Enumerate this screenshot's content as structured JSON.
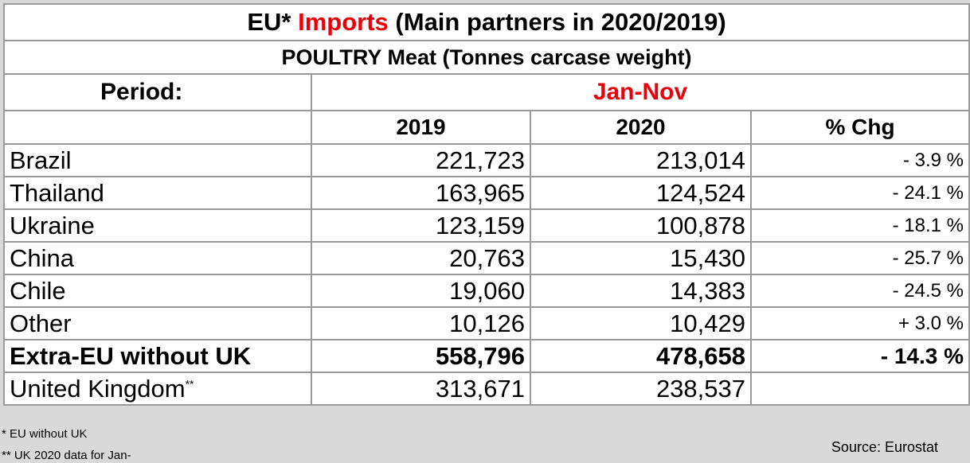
{
  "title": {
    "prefix": "EU*",
    "highlight": "Imports",
    "suffix": "(Main partners in 2020/2019)"
  },
  "subtitle": "POULTRY Meat (Tonnes carcase weight)",
  "period_label": "Period:",
  "period": "Jan-Nov",
  "columns": [
    "2019",
    "2020",
    "% Chg"
  ],
  "rows": [
    {
      "cells": [
        "Brazil",
        "221,723",
        "213,014",
        "- 3.9 %"
      ]
    },
    {
      "cells": [
        "Thailand",
        "163,965",
        "124,524",
        "- 24.1 %"
      ]
    },
    {
      "cells": [
        "Ukraine",
        "123,159",
        "100,878",
        "- 18.1 %"
      ]
    },
    {
      "cells": [
        "China",
        "20,763",
        "15,430",
        "- 25.7 %"
      ]
    },
    {
      "cells": [
        "Chile",
        "19,060",
        "14,383",
        "- 24.5 %"
      ]
    },
    {
      "cells": [
        "Other",
        "10,126",
        "10,429",
        "+ 3.0 %"
      ]
    },
    {
      "cells": [
        "Extra-EU without UK",
        "558,796",
        "478,658",
        "- 14.3 %"
      ],
      "bold": true
    },
    {
      "cells": [
        "United Kingdom",
        "313,671",
        "238,537"
      ],
      "mark": "**"
    }
  ],
  "notes": [
    "* EU without UK",
    "** UK 2020 data for Jan-"
  ],
  "source": "Source: Eurostat"
}
